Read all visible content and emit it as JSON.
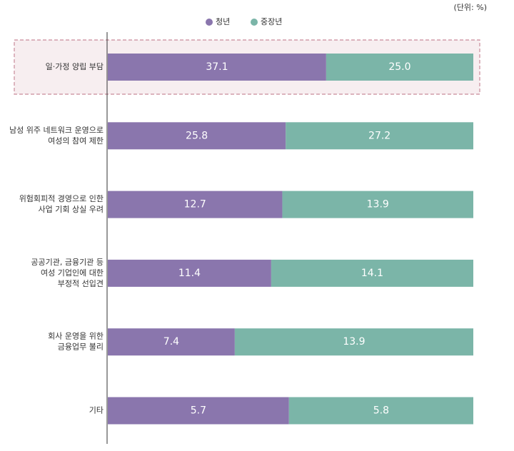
{
  "chart_data": {
    "type": "bar",
    "orientation": "horizontal",
    "stack": "percent",
    "unit_note": "(단위: %)",
    "categories": [
      [
        "일·가정 양립 부담"
      ],
      [
        "남성 위주 네트워크 운영으로",
        "여성의 참여 제한"
      ],
      [
        "위험회피적 경영으로 인한",
        "사업 기회 상실 우려"
      ],
      [
        "공공기관, 금융기관 등",
        "여성 기업인에 대한",
        "부정적 선입견"
      ],
      [
        "회사 운영을 위한",
        "금융업무 불리"
      ],
      [
        "기타"
      ]
    ],
    "series": [
      {
        "name": "청년",
        "color": "#8a76ad",
        "values": [
          37.1,
          25.8,
          12.7,
          11.4,
          7.4,
          5.7
        ],
        "value_labels": [
          "37.1",
          "25.8",
          "12.7",
          "11.4",
          "7.4",
          "5.7"
        ]
      },
      {
        "name": "중장년",
        "color": "#7bb5a8",
        "values": [
          25.0,
          27.2,
          13.9,
          14.1,
          13.9,
          5.8
        ],
        "value_labels": [
          "25.0",
          "27.2",
          "13.9",
          "14.1",
          "13.9",
          "5.8"
        ]
      }
    ]
  }
}
